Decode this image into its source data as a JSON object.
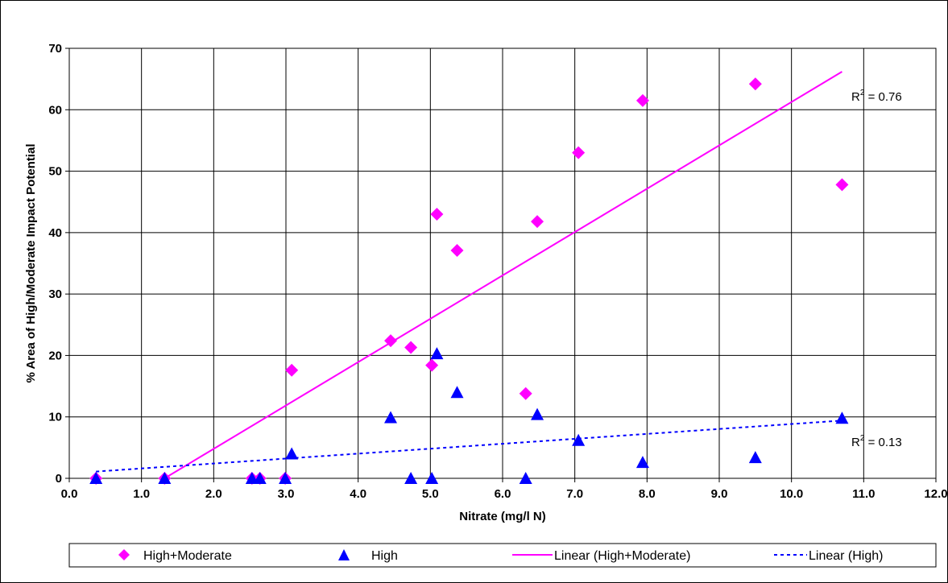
{
  "chart_data": {
    "type": "scatter",
    "xlabel": "Nitrate (mg/l N)",
    "ylabel": "% Area of High/Moderate Impact Potential",
    "xlim": [
      0,
      12
    ],
    "ylim": [
      0,
      70
    ],
    "x_ticks": [
      "0.0",
      "1.0",
      "2.0",
      "3.0",
      "4.0",
      "5.0",
      "6.0",
      "7.0",
      "8.0",
      "9.0",
      "10.0",
      "11.0",
      "12.0"
    ],
    "y_ticks": [
      "0",
      "10",
      "20",
      "30",
      "40",
      "50",
      "60",
      "70"
    ],
    "grid": true,
    "legend_position": "bottom",
    "series": [
      {
        "name": "High+Moderate",
        "marker": "diamond",
        "color": "#FF00FF",
        "points": [
          {
            "x": 0.37,
            "y": 0.0
          },
          {
            "x": 1.32,
            "y": 0.0
          },
          {
            "x": 2.53,
            "y": 0.0
          },
          {
            "x": 2.64,
            "y": 0.0
          },
          {
            "x": 2.99,
            "y": 0.0
          },
          {
            "x": 3.08,
            "y": 17.6
          },
          {
            "x": 4.45,
            "y": 22.4
          },
          {
            "x": 4.73,
            "y": 21.3
          },
          {
            "x": 5.02,
            "y": 18.4
          },
          {
            "x": 5.09,
            "y": 43.0
          },
          {
            "x": 5.37,
            "y": 37.1
          },
          {
            "x": 6.32,
            "y": 13.8
          },
          {
            "x": 6.48,
            "y": 41.8
          },
          {
            "x": 7.05,
            "y": 53.0
          },
          {
            "x": 7.94,
            "y": 61.5
          },
          {
            "x": 9.5,
            "y": 64.2
          },
          {
            "x": 10.7,
            "y": 47.8
          }
        ]
      },
      {
        "name": "High",
        "marker": "triangle",
        "color": "#0000FF",
        "points": [
          {
            "x": 0.37,
            "y": 0.0
          },
          {
            "x": 1.32,
            "y": 0.0
          },
          {
            "x": 2.53,
            "y": 0.0
          },
          {
            "x": 2.64,
            "y": 0.0
          },
          {
            "x": 2.99,
            "y": 0.0
          },
          {
            "x": 3.08,
            "y": 4.0
          },
          {
            "x": 4.45,
            "y": 9.9
          },
          {
            "x": 4.73,
            "y": 0.0
          },
          {
            "x": 5.02,
            "y": 0.0
          },
          {
            "x": 5.09,
            "y": 20.3
          },
          {
            "x": 5.37,
            "y": 14.0
          },
          {
            "x": 6.32,
            "y": 0.0
          },
          {
            "x": 6.48,
            "y": 10.4
          },
          {
            "x": 7.05,
            "y": 6.2
          },
          {
            "x": 7.94,
            "y": 2.6
          },
          {
            "x": 9.5,
            "y": 3.4
          },
          {
            "x": 10.7,
            "y": 9.8
          }
        ]
      },
      {
        "name": "Linear (High+Moderate)",
        "line_style": "solid",
        "color": "#FF00FF",
        "x": [
          1.32,
          10.7
        ],
        "y": [
          0.0,
          66.2
        ]
      },
      {
        "name": "Linear (High)",
        "line_style": "dotted",
        "color": "#0000FF",
        "x": [
          0.37,
          10.7
        ],
        "y": [
          1.1,
          9.4
        ]
      }
    ],
    "annotations": [
      {
        "text_base": "R",
        "text_sup": "2",
        "text_rest": " = 0.76"
      },
      {
        "text_base": "R",
        "text_sup": "2",
        "text_rest": " = 0.13"
      }
    ]
  }
}
